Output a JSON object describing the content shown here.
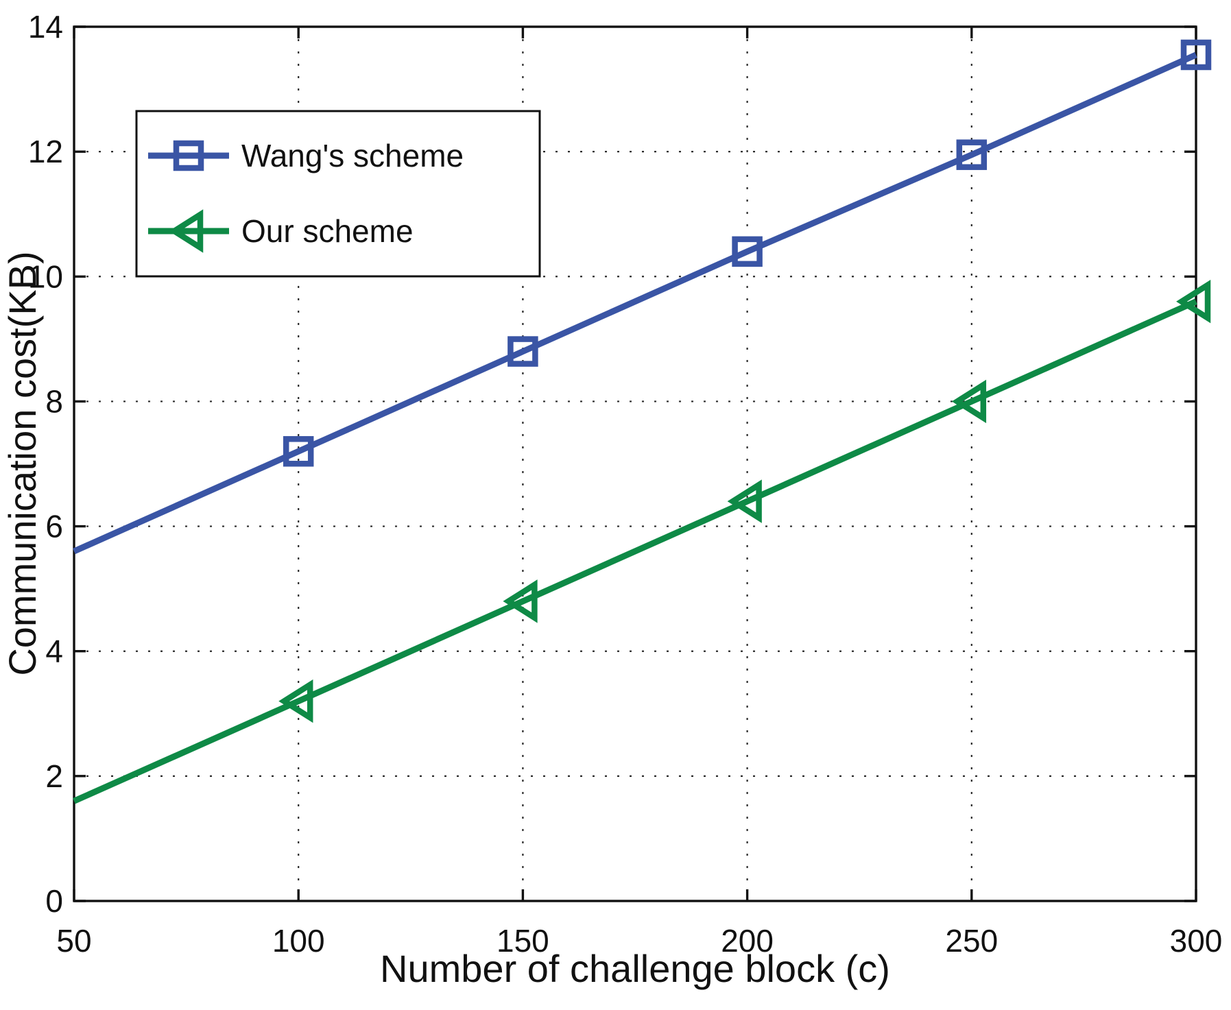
{
  "figure": {
    "background": "#ffffff",
    "axis_color": "#111111",
    "grid_color": "#2b2b2b",
    "text_color": "#111111"
  },
  "chart_data": {
    "type": "line",
    "title": "",
    "xlabel": "Number of challenge block (c)",
    "ylabel": "Communication cost(KB)",
    "xlim": [
      50,
      300
    ],
    "ylim": [
      0,
      14
    ],
    "xticks": [
      50,
      100,
      150,
      200,
      250,
      300
    ],
    "yticks": [
      0,
      2,
      4,
      6,
      8,
      10,
      12,
      14
    ],
    "grid": "dotted, both axes",
    "legend_position": "upper-left-inside",
    "x": [
      50,
      100,
      150,
      200,
      250,
      300
    ],
    "series": [
      {
        "name": "Wang's scheme",
        "values": [
          5.6,
          7.2,
          8.8,
          10.4,
          11.95,
          13.55
        ],
        "color": "#3A55A5",
        "marker": "square",
        "markers_start_at_index": 1
      },
      {
        "name": "Our scheme",
        "values": [
          1.6,
          3.2,
          4.8,
          6.4,
          8.0,
          9.6
        ],
        "color": "#0E8A46",
        "marker": "triangle-left",
        "markers_start_at_index": 1
      }
    ]
  }
}
